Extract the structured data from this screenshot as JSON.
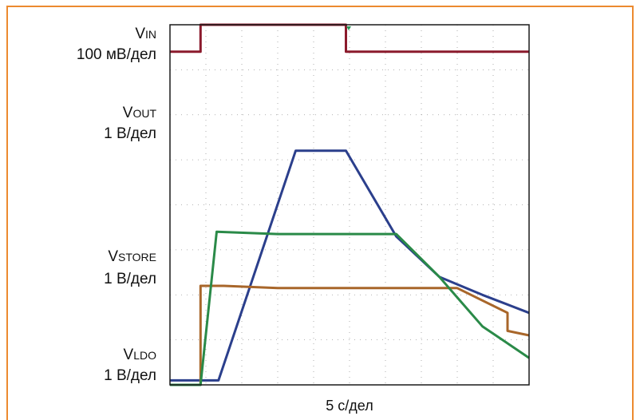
{
  "labels": {
    "vin": {
      "main": "V",
      "sub": "IN",
      "scale": "100 мВ/дел"
    },
    "vout": {
      "main": "V",
      "sub": "OUT",
      "scale": "1 В/дел"
    },
    "vstore": {
      "main": "V",
      "sub": "STORE",
      "scale": "1 В/дел"
    },
    "vldo": {
      "main": "V",
      "sub": "LDO",
      "scale": "1 В/дел"
    }
  },
  "xlabel": "5 с/дел",
  "chart_data": {
    "type": "line",
    "x_unit": "div",
    "x_range": [
      0,
      10
    ],
    "y_range_div": [
      0,
      8
    ],
    "grid": true,
    "series": [
      {
        "name": "VIN",
        "color": "#8b1a2c",
        "x": [
          0,
          0.85,
          0.85,
          4.9,
          4.9,
          10
        ],
        "y": [
          7.4,
          7.4,
          8.0,
          8.0,
          7.4,
          7.4
        ]
      },
      {
        "name": "VOUT",
        "color": "#2b3f8c",
        "x": [
          0,
          0.85,
          1.35,
          3.5,
          4.9,
          6.3,
          7.5,
          8.7,
          10
        ],
        "y": [
          0.1,
          0.1,
          0.1,
          5.2,
          5.2,
          3.3,
          2.4,
          2.0,
          1.6
        ]
      },
      {
        "name": "VSTORE",
        "color": "#a8662a",
        "x": [
          0,
          0.85,
          0.85,
          1.5,
          3.0,
          8.0,
          9.4,
          9.4,
          10
        ],
        "y": [
          0,
          0,
          2.2,
          2.2,
          2.15,
          2.15,
          1.6,
          1.2,
          1.1
        ]
      },
      {
        "name": "VLDO",
        "color": "#2a8a48",
        "x": [
          0,
          0.85,
          1.3,
          3.0,
          6.3,
          7.5,
          8.7,
          10
        ],
        "y": [
          0,
          0,
          3.4,
          3.35,
          3.35,
          2.4,
          1.3,
          0.6
        ]
      }
    ]
  }
}
